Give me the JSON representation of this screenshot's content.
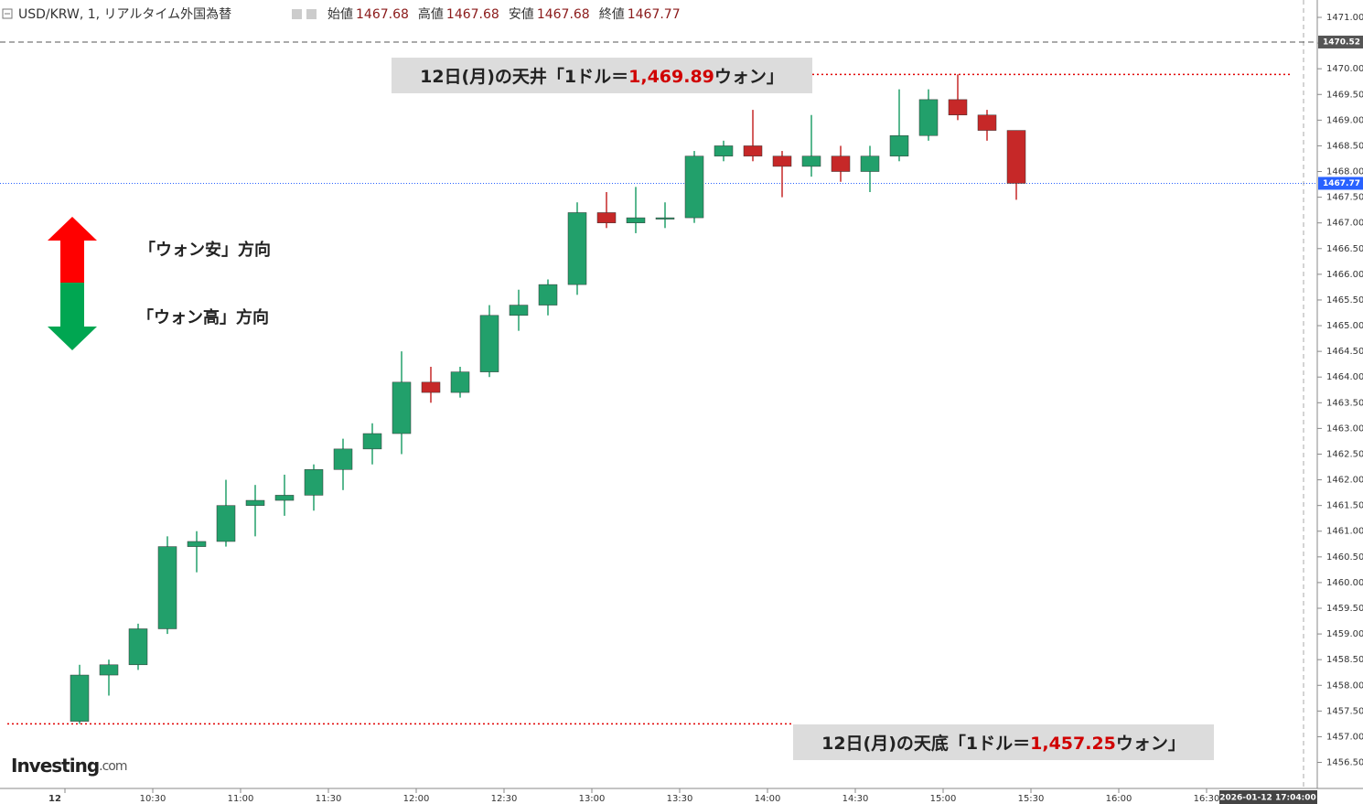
{
  "chart_data": {
    "type": "candlestick",
    "title": "USD/KRW, 1, リアルタイム外国為替",
    "header": [
      {
        "label": "始値",
        "value": 1467.68
      },
      {
        "label": "高値",
        "value": 1467.68
      },
      {
        "label": "安値",
        "value": 1467.68
      },
      {
        "label": "終値",
        "value": 1467.77
      }
    ],
    "categories": [
      "12",
      null,
      null,
      "10:30",
      null,
      null,
      "11:00",
      null,
      null,
      "11:30",
      null,
      null,
      "12:00",
      null,
      null,
      "12:30",
      null,
      null,
      "13:00",
      null,
      null,
      "13:30",
      null,
      null,
      "14:00",
      null,
      null,
      "14:30",
      null,
      null,
      "15:00",
      null,
      null,
      "15:30",
      null,
      null,
      "16:00",
      null,
      null,
      "16:30",
      null,
      null,
      null
    ],
    "open": [
      1457.3,
      1458.2,
      1458.4,
      1459.1,
      1460.7,
      1460.8,
      1461.5,
      1461.6,
      1461.7,
      1462.2,
      1462.6,
      1462.9,
      1463.9,
      1463.7,
      1464.1,
      1465.2,
      1465.4,
      1465.8,
      1467.2,
      1467.0,
      1467.1,
      1467.1,
      1468.3,
      1468.5,
      1468.3,
      1468.1,
      1468.3,
      1468.0,
      1468.3,
      1468.7,
      1469.4,
      1469.1,
      1468.8,
      null,
      null,
      null,
      null,
      null,
      null,
      null,
      null,
      null,
      null
    ],
    "high": [
      1458.4,
      1458.5,
      1459.2,
      1460.9,
      1461.0,
      1462.0,
      1461.9,
      1462.1,
      1462.3,
      1462.8,
      1463.1,
      1464.5,
      1464.2,
      1464.2,
      1465.4,
      1465.7,
      1465.9,
      1467.4,
      1467.6,
      1467.7,
      1467.4,
      1468.4,
      1468.6,
      1469.2,
      1468.4,
      1469.1,
      1468.5,
      1468.5,
      1469.6,
      1469.6,
      1469.89,
      1469.2,
      1468.8,
      null,
      null,
      null,
      null,
      null,
      null,
      null,
      null,
      null,
      null
    ],
    "low": [
      1457.25,
      1457.8,
      1458.3,
      1459.0,
      1460.2,
      1460.7,
      1460.9,
      1461.3,
      1461.4,
      1461.8,
      1462.3,
      1462.5,
      1463.5,
      1463.6,
      1464.0,
      1464.9,
      1465.2,
      1465.6,
      1466.9,
      1466.8,
      1466.9,
      1467.0,
      1468.2,
      1468.2,
      1467.5,
      1467.9,
      1467.8,
      1467.6,
      1468.2,
      1468.6,
      1469.0,
      1468.6,
      1467.45,
      null,
      null,
      null,
      null,
      null,
      null,
      null,
      null,
      null,
      null
    ],
    "close": [
      1458.2,
      1458.4,
      1459.1,
      1460.7,
      1460.8,
      1461.5,
      1461.6,
      1461.7,
      1462.2,
      1462.6,
      1462.9,
      1463.9,
      1463.7,
      1464.1,
      1465.2,
      1465.4,
      1465.8,
      1467.2,
      1467.0,
      1467.1,
      1467.1,
      1468.3,
      1468.5,
      1468.3,
      1468.1,
      1468.3,
      1468.0,
      1468.3,
      1468.7,
      1469.4,
      1469.1,
      1468.8,
      1467.77,
      null,
      null,
      null,
      null,
      null,
      null,
      null,
      null,
      null,
      null
    ],
    "up_color": "#22a06b",
    "down_color": "#c62828",
    "ylim": [
      1456.4,
      1471.3
    ],
    "yticks": [
      {
        "value": 1456.5,
        "label": "1456.50"
      },
      {
        "value": 1457,
        "label": "1457.00"
      },
      {
        "value": 1457.5,
        "label": "1457.50"
      },
      {
        "value": 1458,
        "label": "1458.00"
      },
      {
        "value": 1458.5,
        "label": "1458.50"
      },
      {
        "value": 1459,
        "label": "1459.00"
      },
      {
        "value": 1459.5,
        "label": "1459.50"
      },
      {
        "value": 1460,
        "label": "1460.00"
      },
      {
        "value": 1460.5,
        "label": "1460.50"
      },
      {
        "value": 1461,
        "label": "1461.00"
      },
      {
        "value": 1461.5,
        "label": "1461.50"
      },
      {
        "value": 1462,
        "label": "1462.00"
      },
      {
        "value": 1462.5,
        "label": "1462.50"
      },
      {
        "value": 1463,
        "label": "1463.00"
      },
      {
        "value": 1463.5,
        "label": "1463.50"
      },
      {
        "value": 1464,
        "label": "1464.00"
      },
      {
        "value": 1464.5,
        "label": "1464.50"
      },
      {
        "value": 1465,
        "label": "1465.00"
      },
      {
        "value": 1465.5,
        "label": "1465.50"
      },
      {
        "value": 1466,
        "label": "1466.00"
      },
      {
        "value": 1466.5,
        "label": "1466.50"
      },
      {
        "value": 1467,
        "label": "1467.00"
      },
      {
        "value": 1467.5,
        "label": "1467.50"
      },
      {
        "value": 1468,
        "label": "1468.00"
      },
      {
        "value": 1468.5,
        "label": "1468.50"
      },
      {
        "value": 1469,
        "label": "1469.00"
      },
      {
        "value": 1469.5,
        "label": "1469.50"
      },
      {
        "value": 1470,
        "label": "1470.00"
      },
      {
        "value": 1470.5,
        "label": "1470.50"
      },
      {
        "value": 1471,
        "label": "1471.00"
      }
    ],
    "price_lines": [
      {
        "value": 1470.52,
        "label": "1470.52",
        "color": "#555555"
      },
      {
        "value": 1467.77,
        "label": "1467.77",
        "color": "#2962ff"
      }
    ],
    "callouts": [
      {
        "prefix": "12日(月)の天井「1ドル＝",
        "value": 1469.89,
        "value_label": "1,469.89",
        "suffix": "ウォン」"
      },
      {
        "prefix": "12日(月)の天底「1ドル＝",
        "value": 1457.25,
        "value_label": "1,457.25",
        "suffix": "ウォン」"
      }
    ],
    "direction_labels": [
      "「ウォン安」方向",
      "「ウォン高」方向"
    ],
    "timestamp": "2026-01-12 17:04:00",
    "logo": [
      "Investing",
      ".com"
    ]
  }
}
